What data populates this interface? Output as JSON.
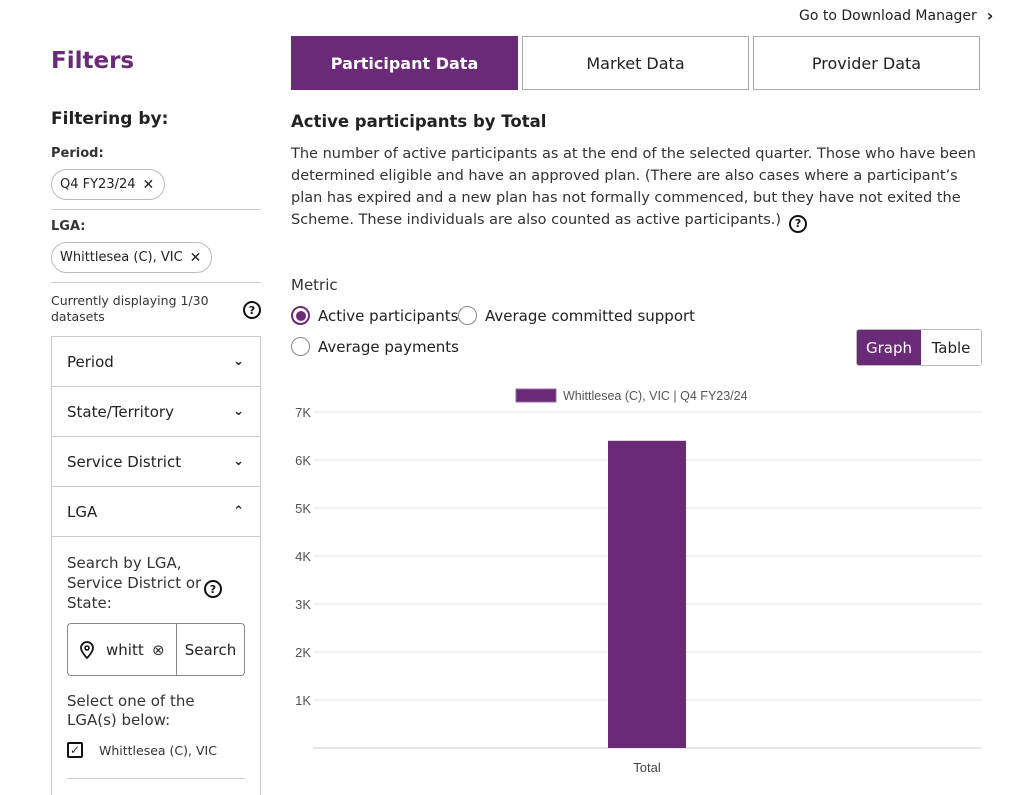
{
  "header": {
    "download_link": "Go to Download Manager"
  },
  "sidebar": {
    "title": "Filters",
    "filtering_by": "Filtering by:",
    "period_label": "Period:",
    "period_chip": "Q4 FY23/24",
    "lga_label": "LGA:",
    "lga_chip": "Whittlesea (C), VIC",
    "displaying": "Currently displaying 1/30 datasets",
    "accordion": [
      {
        "label": "Period",
        "state": "collapsed"
      },
      {
        "label": "State/Territory",
        "state": "collapsed"
      },
      {
        "label": "Service District",
        "state": "collapsed"
      },
      {
        "label": "LGA",
        "state": "expanded"
      }
    ],
    "lga_panel": {
      "search_label": "Search by LGA, Service District or State:",
      "search_value": "whitt",
      "search_button": "Search",
      "select_label": "Select one of the LGA(s) below:",
      "options": [
        {
          "label": "Whittlesea (C), VIC",
          "checked": true
        }
      ]
    }
  },
  "tabs": [
    {
      "label": "Participant Data",
      "active": true
    },
    {
      "label": "Market Data",
      "active": false
    },
    {
      "label": "Provider Data",
      "active": false
    }
  ],
  "main": {
    "section_title": "Active participants by Total",
    "description": "The number of active participants as at the end of the selected quarter. Those who have been determined eligible and have an approved plan. (There are also cases where a participant’s plan has expired and a new plan has not formally commenced, but they have not exited the Scheme. These individuals are also counted as active participants.)",
    "metric_label": "Metric",
    "metrics": [
      {
        "label": "Active participants",
        "selected": true
      },
      {
        "label": "Average committed support",
        "selected": false
      },
      {
        "label": "Average payments",
        "selected": false
      }
    ],
    "view_toggle": {
      "graph": "Graph",
      "table": "Table",
      "active": "graph"
    }
  },
  "colors": {
    "accent": "#6b2a78",
    "bar": "#6b2a78"
  },
  "chart_data": {
    "type": "bar",
    "categories": [
      "Total"
    ],
    "series": [
      {
        "name": "Whittlesea (C), VIC | Q4 FY23/24",
        "values": [
          6400
        ]
      }
    ],
    "yticks": [
      "1K",
      "2K",
      "3K",
      "4K",
      "5K",
      "6K",
      "7K"
    ],
    "ylim": [
      0,
      7000
    ],
    "legend": "top-center",
    "grid": true
  }
}
